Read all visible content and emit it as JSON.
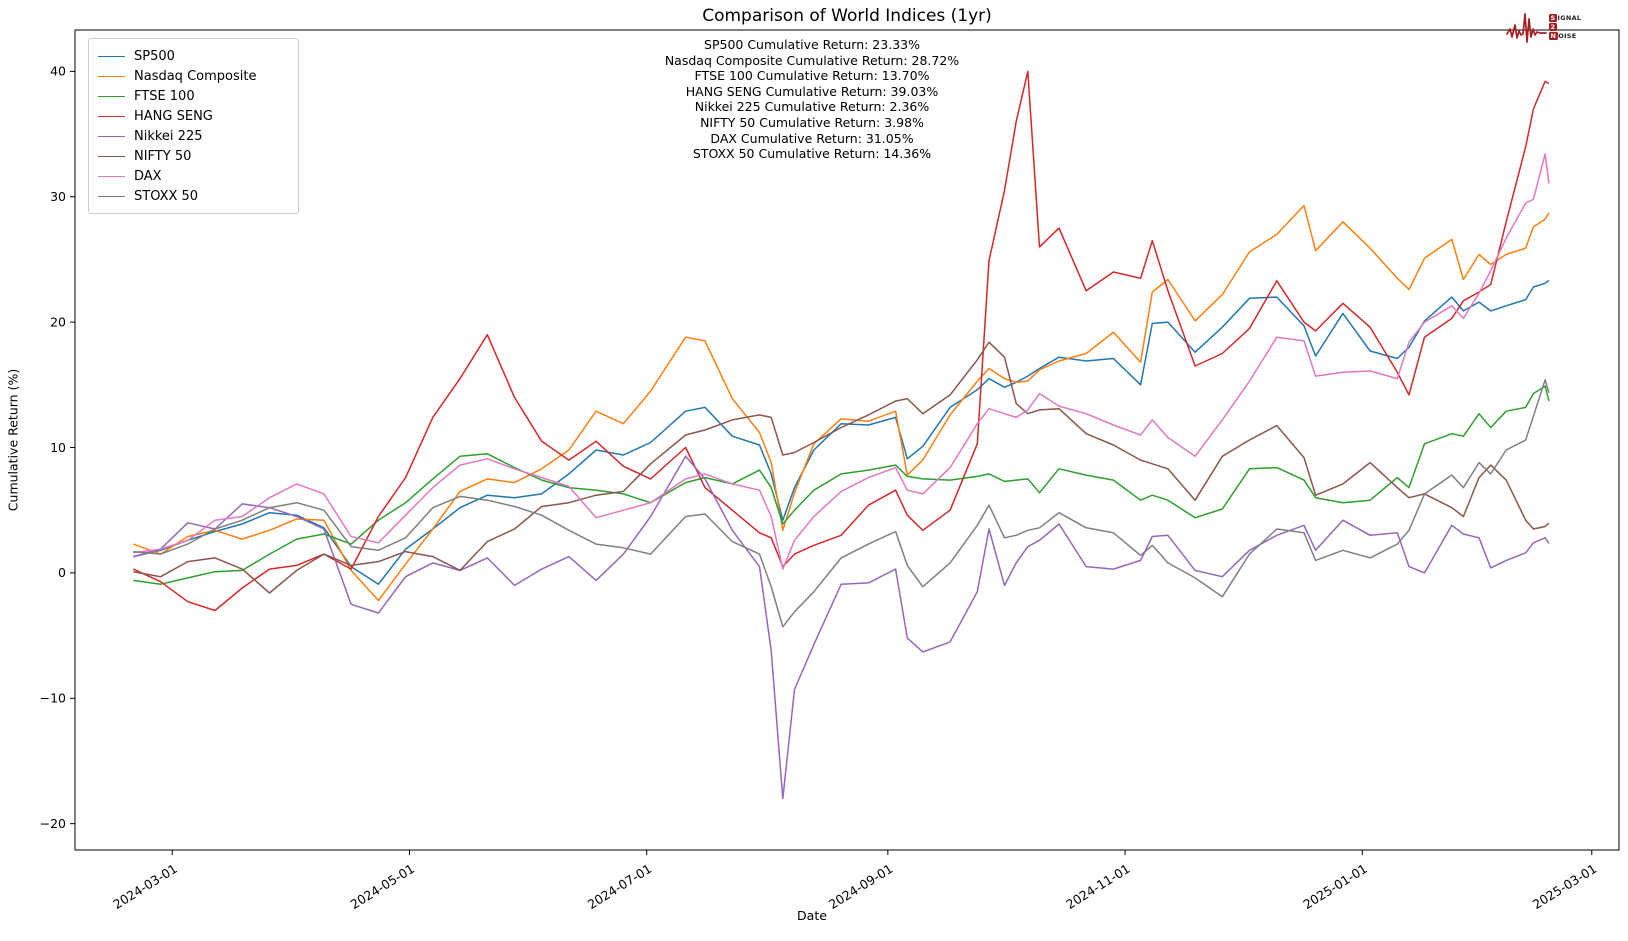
{
  "title": "Comparison of World Indices (1yr)",
  "branding": {
    "signal_initial": "S",
    "signal_rest": "IGNAL",
    "middle_char": "2",
    "noise_initial": "N",
    "noise_rest": "OISE",
    "accent_color": "#a51e24"
  },
  "annotations": [
    "SP500 Cumulative Return: 23.33%",
    "Nasdaq Composite Cumulative Return: 28.72%",
    "FTSE 100 Cumulative Return: 13.70%",
    "HANG SENG Cumulative Return: 39.03%",
    "Nikkei 225 Cumulative Return: 2.36%",
    "NIFTY 50 Cumulative Return: 3.98%",
    "DAX Cumulative Return: 31.05%",
    "STOXX 50 Cumulative Return: 14.36%"
  ],
  "chart_data": {
    "type": "line",
    "title": "Comparison of World Indices (1yr)",
    "xlabel": "Date",
    "ylabel": "Cumulative Return (%)",
    "legend_position": "upper left",
    "grid": false,
    "background": "#ffffff",
    "ylim": [
      -22.1,
      43.3
    ],
    "y_ticks": [
      -20,
      -10,
      0,
      10,
      20,
      30,
      40
    ],
    "xlim": [
      "2024-02-05",
      "2025-03-08"
    ],
    "x_ticks": [
      "2024-03-01",
      "2024-05-01",
      "2024-07-01",
      "2024-09-01",
      "2024-11-01",
      "2025-01-01",
      "2025-03-01"
    ],
    "x": [
      "2024-02-20",
      "2024-02-27",
      "2024-03-05",
      "2024-03-12",
      "2024-03-19",
      "2024-03-26",
      "2024-04-02",
      "2024-04-09",
      "2024-04-16",
      "2024-04-23",
      "2024-04-30",
      "2024-05-07",
      "2024-05-14",
      "2024-05-21",
      "2024-05-28",
      "2024-06-04",
      "2024-06-11",
      "2024-06-18",
      "2024-06-25",
      "2024-07-02",
      "2024-07-11",
      "2024-07-16",
      "2024-07-23",
      "2024-07-30",
      "2024-08-02",
      "2024-08-05",
      "2024-08-08",
      "2024-08-13",
      "2024-08-20",
      "2024-08-27",
      "2024-09-03",
      "2024-09-06",
      "2024-09-10",
      "2024-09-17",
      "2024-09-24",
      "2024-09-27",
      "2024-10-01",
      "2024-10-04",
      "2024-10-07",
      "2024-10-10",
      "2024-10-15",
      "2024-10-22",
      "2024-10-29",
      "2024-11-05",
      "2024-11-08",
      "2024-11-12",
      "2024-11-19",
      "2024-11-26",
      "2024-12-03",
      "2024-12-10",
      "2024-12-17",
      "2024-12-20",
      "2024-12-27",
      "2025-01-03",
      "2025-01-10",
      "2025-01-13",
      "2025-01-17",
      "2025-01-24",
      "2025-01-27",
      "2025-01-31",
      "2025-02-03",
      "2025-02-07",
      "2025-02-12",
      "2025-02-14",
      "2025-02-17",
      "2025-02-18"
    ],
    "series": [
      {
        "name": "SP500",
        "color": "#1f77b4",
        "final_return_pct": 23.33,
        "values": [
          1.3,
          1.8,
          2.6,
          3.3,
          3.9,
          4.8,
          4.6,
          3.6,
          0.5,
          -0.9,
          1.9,
          3.5,
          5.2,
          6.2,
          6.0,
          6.3,
          7.9,
          9.8,
          9.4,
          10.4,
          12.9,
          13.2,
          10.9,
          10.2,
          7.9,
          4.2,
          6.8,
          9.8,
          11.9,
          11.8,
          12.4,
          9.1,
          10.1,
          13.2,
          14.6,
          15.5,
          14.8,
          15.2,
          15.7,
          16.3,
          17.2,
          16.9,
          17.1,
          15.0,
          19.9,
          20.0,
          17.6,
          19.6,
          21.9,
          22.0,
          19.7,
          17.3,
          20.7,
          17.7,
          17.1,
          18.0,
          20.1,
          22.0,
          20.9,
          21.6,
          20.9,
          21.3,
          21.8,
          22.8,
          23.1,
          23.33
        ]
      },
      {
        "name": "Nasdaq Composite",
        "color": "#ff7f0e",
        "final_return_pct": 28.72,
        "values": [
          2.3,
          1.5,
          2.9,
          3.4,
          2.7,
          3.4,
          4.3,
          4.2,
          0.2,
          -2.2,
          0.7,
          3.5,
          6.5,
          7.5,
          7.2,
          8.3,
          9.8,
          12.9,
          11.9,
          14.5,
          18.8,
          18.5,
          13.9,
          11.2,
          8.8,
          3.4,
          6.4,
          10.3,
          12.3,
          12.1,
          12.9,
          7.8,
          9.0,
          12.6,
          15.3,
          16.3,
          15.5,
          15.2,
          15.3,
          16.2,
          16.9,
          17.5,
          19.2,
          16.8,
          22.4,
          23.4,
          20.1,
          22.2,
          25.6,
          27.0,
          29.3,
          25.7,
          28.0,
          25.9,
          23.5,
          22.6,
          25.1,
          26.6,
          23.4,
          25.4,
          24.6,
          25.4,
          25.9,
          27.6,
          28.2,
          28.72
        ]
      },
      {
        "name": "FTSE 100",
        "color": "#2ca02c",
        "final_return_pct": 13.7,
        "values": [
          -0.6,
          -0.9,
          -0.4,
          0.1,
          0.2,
          1.5,
          2.7,
          3.1,
          2.3,
          4.2,
          5.6,
          7.5,
          9.3,
          9.5,
          8.4,
          7.4,
          6.8,
          6.6,
          6.3,
          5.6,
          7.2,
          7.6,
          7.1,
          8.2,
          6.8,
          3.9,
          5.0,
          6.6,
          7.9,
          8.2,
          8.6,
          7.7,
          7.5,
          7.4,
          7.7,
          7.9,
          7.3,
          7.4,
          7.5,
          6.4,
          8.3,
          7.8,
          7.4,
          5.8,
          6.2,
          5.8,
          4.4,
          5.1,
          8.3,
          8.4,
          7.4,
          6.0,
          5.6,
          5.8,
          7.6,
          6.8,
          10.3,
          11.1,
          10.9,
          12.7,
          11.6,
          12.9,
          13.2,
          14.3,
          14.9,
          13.7
        ]
      },
      {
        "name": "HANG SENG",
        "color": "#d62728",
        "final_return_pct": 39.03,
        "values": [
          0.3,
          -0.7,
          -2.3,
          -3.0,
          -1.2,
          0.3,
          0.6,
          1.5,
          0.3,
          4.5,
          7.6,
          12.4,
          15.5,
          19.0,
          14.0,
          10.5,
          9.0,
          10.5,
          8.5,
          7.5,
          10.0,
          6.8,
          5.0,
          3.2,
          2.8,
          0.5,
          1.5,
          2.2,
          3.0,
          5.4,
          6.6,
          4.6,
          3.4,
          5.0,
          10.3,
          24.9,
          30.5,
          36.0,
          40.0,
          26.0,
          27.5,
          22.5,
          24.0,
          23.5,
          26.5,
          22.5,
          16.5,
          17.5,
          19.5,
          23.3,
          20.0,
          19.3,
          21.5,
          19.6,
          16.0,
          14.2,
          18.8,
          20.3,
          21.7,
          22.4,
          23.0,
          28.0,
          34.0,
          37.0,
          39.2,
          39.03
        ]
      },
      {
        "name": "Nikkei 225",
        "color": "#9467bd",
        "final_return_pct": 2.36,
        "values": [
          1.3,
          1.9,
          4.0,
          3.5,
          5.5,
          5.2,
          4.5,
          3.5,
          -2.5,
          -3.2,
          -0.3,
          0.8,
          0.2,
          1.2,
          -1.0,
          0.3,
          1.3,
          -0.6,
          1.5,
          4.5,
          9.3,
          7.5,
          3.4,
          0.5,
          -6.2,
          -18.0,
          -9.3,
          -5.7,
          -0.9,
          -0.8,
          0.3,
          -5.2,
          -6.3,
          -5.5,
          -1.5,
          3.5,
          -1.0,
          0.8,
          2.1,
          2.6,
          3.9,
          0.5,
          0.3,
          1.0,
          2.9,
          3.0,
          0.2,
          -0.3,
          1.8,
          3.0,
          3.8,
          1.8,
          4.2,
          3.0,
          3.2,
          0.5,
          0.0,
          3.8,
          3.1,
          2.8,
          0.4,
          1.0,
          1.6,
          2.4,
          2.8,
          2.36
        ]
      },
      {
        "name": "NIFTY 50",
        "color": "#8c564b",
        "final_return_pct": 3.98,
        "values": [
          0.1,
          -0.3,
          0.9,
          1.2,
          0.3,
          -1.6,
          0.2,
          1.5,
          0.6,
          0.9,
          1.7,
          1.3,
          0.2,
          2.5,
          3.5,
          5.3,
          5.6,
          6.2,
          6.5,
          8.7,
          11.0,
          11.4,
          12.2,
          12.6,
          12.4,
          9.4,
          9.6,
          10.4,
          11.6,
          12.6,
          13.7,
          13.9,
          12.7,
          14.2,
          17.0,
          18.4,
          17.2,
          13.5,
          12.7,
          13.0,
          13.1,
          11.1,
          10.2,
          9.0,
          8.7,
          8.3,
          5.8,
          9.3,
          10.6,
          11.75,
          9.2,
          6.2,
          7.1,
          8.8,
          6.8,
          6.0,
          6.3,
          5.2,
          4.5,
          7.6,
          8.6,
          7.4,
          4.2,
          3.5,
          3.7,
          3.98
        ]
      },
      {
        "name": "DAX",
        "color": "#e377c2",
        "final_return_pct": 31.05,
        "values": [
          1.6,
          1.9,
          2.6,
          4.2,
          4.5,
          6.0,
          7.1,
          6.3,
          2.9,
          2.4,
          4.6,
          6.8,
          8.6,
          9.1,
          8.3,
          7.6,
          6.9,
          4.4,
          5.0,
          5.6,
          7.5,
          7.9,
          7.1,
          6.6,
          4.5,
          0.3,
          2.6,
          4.5,
          6.5,
          7.6,
          8.4,
          6.6,
          6.3,
          8.4,
          11.9,
          13.1,
          12.7,
          12.4,
          13.0,
          14.3,
          13.3,
          12.7,
          11.8,
          11.0,
          12.2,
          10.8,
          9.3,
          12.2,
          15.3,
          18.8,
          18.5,
          15.7,
          16.0,
          16.1,
          15.5,
          18.4,
          20.0,
          21.3,
          20.3,
          22.3,
          24.1,
          26.7,
          29.5,
          29.8,
          33.4,
          31.05
        ]
      },
      {
        "name": "STOXX 50",
        "color": "#7f7f7f",
        "final_return_pct": 14.36,
        "values": [
          1.7,
          1.5,
          2.3,
          3.5,
          4.2,
          5.2,
          5.6,
          5.0,
          2.1,
          1.8,
          2.8,
          5.2,
          6.1,
          5.8,
          5.3,
          4.6,
          3.4,
          2.3,
          2.0,
          1.5,
          4.5,
          4.7,
          2.5,
          1.5,
          -1.1,
          -4.3,
          -3.1,
          -1.5,
          1.2,
          2.3,
          3.3,
          0.6,
          -1.1,
          0.8,
          3.8,
          5.4,
          2.8,
          3.0,
          3.4,
          3.6,
          4.8,
          3.6,
          3.2,
          1.4,
          2.2,
          0.8,
          -0.4,
          -1.9,
          1.5,
          3.5,
          3.2,
          1.0,
          1.8,
          1.2,
          2.3,
          3.4,
          6.3,
          7.8,
          6.8,
          8.8,
          7.9,
          9.8,
          10.6,
          12.5,
          15.4,
          14.36
        ]
      }
    ]
  }
}
